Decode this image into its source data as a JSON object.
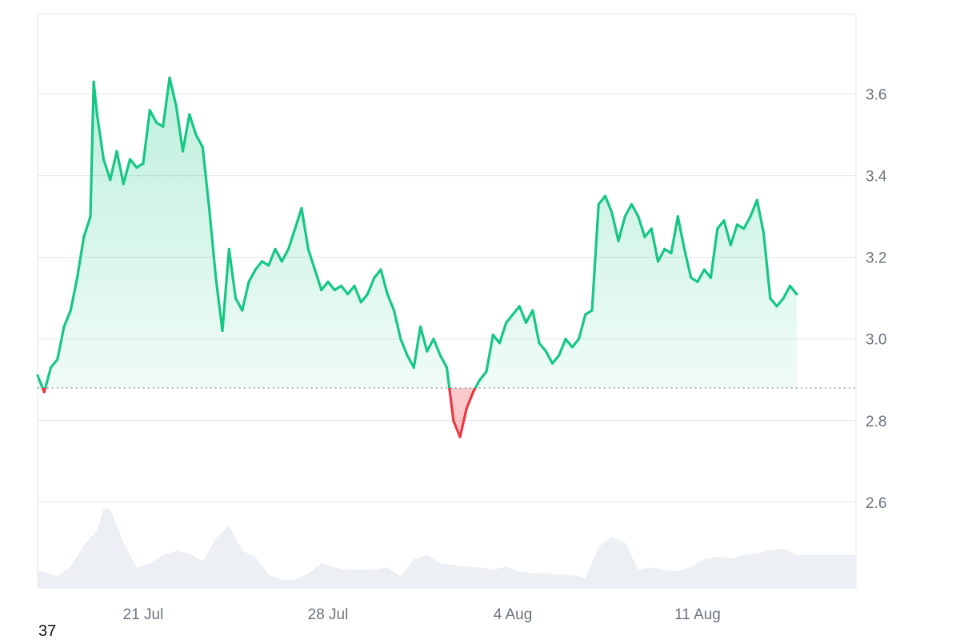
{
  "chart_data": {
    "type": "area",
    "title": "",
    "xlabel": "",
    "ylabel": "",
    "y_axis_position": "right",
    "ylim": [
      2.39,
      3.795
    ],
    "y_ticks": [
      "2.6",
      "2.8",
      "3.0",
      "3.2",
      "3.4",
      "3.6"
    ],
    "x_ticks": [
      "21 Jul",
      "28 Jul",
      "4 Aug",
      "11 Aug"
    ],
    "xlim": [
      "2024-07-17 00:00",
      "2024-08-17 00:00"
    ],
    "baseline": 2.88,
    "grid": true,
    "colors": {
      "above_baseline": "#16c784",
      "below_baseline": "#ea3943",
      "volume": "#eceff3"
    },
    "series": [
      {
        "values": [
          [
            "2024-07-17 00:00",
            2.91
          ],
          [
            "2024-07-17 06:00",
            2.87
          ],
          [
            "2024-07-17 12:00",
            2.93
          ],
          [
            "2024-07-17 18:00",
            2.95
          ],
          [
            "2024-07-18 00:00",
            3.03
          ],
          [
            "2024-07-18 06:00",
            3.07
          ],
          [
            "2024-07-18 12:00",
            3.15
          ],
          [
            "2024-07-18 18:00",
            3.25
          ],
          [
            "2024-07-19 00:00",
            3.3
          ],
          [
            "2024-07-19 03:00",
            3.63
          ],
          [
            "2024-07-19 06:00",
            3.55
          ],
          [
            "2024-07-19 12:00",
            3.44
          ],
          [
            "2024-07-19 18:00",
            3.39
          ],
          [
            "2024-07-20 00:00",
            3.46
          ],
          [
            "2024-07-20 06:00",
            3.38
          ],
          [
            "2024-07-20 12:00",
            3.44
          ],
          [
            "2024-07-20 18:00",
            3.42
          ],
          [
            "2024-07-21 00:00",
            3.43
          ],
          [
            "2024-07-21 06:00",
            3.56
          ],
          [
            "2024-07-21 12:00",
            3.53
          ],
          [
            "2024-07-21 18:00",
            3.52
          ],
          [
            "2024-07-22 00:00",
            3.64
          ],
          [
            "2024-07-22 06:00",
            3.57
          ],
          [
            "2024-07-22 12:00",
            3.46
          ],
          [
            "2024-07-22 18:00",
            3.55
          ],
          [
            "2024-07-23 00:00",
            3.5
          ],
          [
            "2024-07-23 06:00",
            3.47
          ],
          [
            "2024-07-23 12:00",
            3.32
          ],
          [
            "2024-07-23 18:00",
            3.15
          ],
          [
            "2024-07-24 00:00",
            3.02
          ],
          [
            "2024-07-24 06:00",
            3.22
          ],
          [
            "2024-07-24 12:00",
            3.1
          ],
          [
            "2024-07-24 18:00",
            3.07
          ],
          [
            "2024-07-25 00:00",
            3.14
          ],
          [
            "2024-07-25 06:00",
            3.17
          ],
          [
            "2024-07-25 12:00",
            3.19
          ],
          [
            "2024-07-25 18:00",
            3.18
          ],
          [
            "2024-07-26 00:00",
            3.22
          ],
          [
            "2024-07-26 06:00",
            3.19
          ],
          [
            "2024-07-26 12:00",
            3.22
          ],
          [
            "2024-07-26 18:00",
            3.27
          ],
          [
            "2024-07-27 00:00",
            3.32
          ],
          [
            "2024-07-27 06:00",
            3.22
          ],
          [
            "2024-07-27 12:00",
            3.17
          ],
          [
            "2024-07-27 18:00",
            3.12
          ],
          [
            "2024-07-28 00:00",
            3.14
          ],
          [
            "2024-07-28 06:00",
            3.12
          ],
          [
            "2024-07-28 12:00",
            3.13
          ],
          [
            "2024-07-28 18:00",
            3.11
          ],
          [
            "2024-07-29 00:00",
            3.13
          ],
          [
            "2024-07-29 06:00",
            3.09
          ],
          [
            "2024-07-29 12:00",
            3.11
          ],
          [
            "2024-07-29 18:00",
            3.15
          ],
          [
            "2024-07-30 00:00",
            3.17
          ],
          [
            "2024-07-30 06:00",
            3.11
          ],
          [
            "2024-07-30 12:00",
            3.07
          ],
          [
            "2024-07-30 18:00",
            3.0
          ],
          [
            "2024-07-31 00:00",
            2.96
          ],
          [
            "2024-07-31 06:00",
            2.93
          ],
          [
            "2024-07-31 12:00",
            3.03
          ],
          [
            "2024-07-31 18:00",
            2.97
          ],
          [
            "2024-08-01 00:00",
            3.0
          ],
          [
            "2024-08-01 06:00",
            2.96
          ],
          [
            "2024-08-01 12:00",
            2.93
          ],
          [
            "2024-08-01 18:00",
            2.8
          ],
          [
            "2024-08-02 00:00",
            2.76
          ],
          [
            "2024-08-02 06:00",
            2.83
          ],
          [
            "2024-08-02 12:00",
            2.87
          ],
          [
            "2024-08-02 18:00",
            2.9
          ],
          [
            "2024-08-03 00:00",
            2.92
          ],
          [
            "2024-08-03 06:00",
            3.01
          ],
          [
            "2024-08-03 12:00",
            2.99
          ],
          [
            "2024-08-03 18:00",
            3.04
          ],
          [
            "2024-08-04 00:00",
            3.06
          ],
          [
            "2024-08-04 06:00",
            3.08
          ],
          [
            "2024-08-04 12:00",
            3.04
          ],
          [
            "2024-08-04 18:00",
            3.07
          ],
          [
            "2024-08-05 00:00",
            2.99
          ],
          [
            "2024-08-05 06:00",
            2.97
          ],
          [
            "2024-08-05 12:00",
            2.94
          ],
          [
            "2024-08-05 18:00",
            2.96
          ],
          [
            "2024-08-06 00:00",
            3.0
          ],
          [
            "2024-08-06 06:00",
            2.98
          ],
          [
            "2024-08-06 12:00",
            3.0
          ],
          [
            "2024-08-06 18:00",
            3.06
          ],
          [
            "2024-08-07 00:00",
            3.07
          ],
          [
            "2024-08-07 06:00",
            3.33
          ],
          [
            "2024-08-07 12:00",
            3.35
          ],
          [
            "2024-08-07 18:00",
            3.31
          ],
          [
            "2024-08-08 00:00",
            3.24
          ],
          [
            "2024-08-08 06:00",
            3.3
          ],
          [
            "2024-08-08 12:00",
            3.33
          ],
          [
            "2024-08-08 18:00",
            3.3
          ],
          [
            "2024-08-09 00:00",
            3.25
          ],
          [
            "2024-08-09 06:00",
            3.27
          ],
          [
            "2024-08-09 12:00",
            3.19
          ],
          [
            "2024-08-09 18:00",
            3.22
          ],
          [
            "2024-08-10 00:00",
            3.21
          ],
          [
            "2024-08-10 06:00",
            3.3
          ],
          [
            "2024-08-10 12:00",
            3.22
          ],
          [
            "2024-08-10 18:00",
            3.15
          ],
          [
            "2024-08-11 00:00",
            3.14
          ],
          [
            "2024-08-11 06:00",
            3.17
          ],
          [
            "2024-08-11 12:00",
            3.15
          ],
          [
            "2024-08-11 18:00",
            3.27
          ],
          [
            "2024-08-12 00:00",
            3.29
          ],
          [
            "2024-08-12 06:00",
            3.23
          ],
          [
            "2024-08-12 12:00",
            3.28
          ],
          [
            "2024-08-12 18:00",
            3.27
          ],
          [
            "2024-08-13 00:00",
            3.3
          ],
          [
            "2024-08-13 06:00",
            3.34
          ],
          [
            "2024-08-13 12:00",
            3.26
          ],
          [
            "2024-08-13 18:00",
            3.1
          ],
          [
            "2024-08-14 00:00",
            3.08
          ],
          [
            "2024-08-14 06:00",
            3.1
          ],
          [
            "2024-08-14 12:00",
            3.13
          ],
          [
            "2024-08-14 18:00",
            3.11
          ]
        ]
      }
    ],
    "volume": [
      [
        "2024-07-17 00:00",
        0.22
      ],
      [
        "2024-07-17 18:00",
        0.14
      ],
      [
        "2024-07-18 06:00",
        0.26
      ],
      [
        "2024-07-18 18:00",
        0.52
      ],
      [
        "2024-07-19 06:00",
        0.7
      ],
      [
        "2024-07-19 12:00",
        0.96
      ],
      [
        "2024-07-19 18:00",
        0.96
      ],
      [
        "2024-07-20 06:00",
        0.55
      ],
      [
        "2024-07-20 18:00",
        0.25
      ],
      [
        "2024-07-21 06:00",
        0.3
      ],
      [
        "2024-07-21 18:00",
        0.4
      ],
      [
        "2024-07-22 06:00",
        0.45
      ],
      [
        "2024-07-22 18:00",
        0.42
      ],
      [
        "2024-07-23 06:00",
        0.32
      ],
      [
        "2024-07-23 18:00",
        0.6
      ],
      [
        "2024-07-24 06:00",
        0.76
      ],
      [
        "2024-07-24 18:00",
        0.45
      ],
      [
        "2024-07-25 06:00",
        0.38
      ],
      [
        "2024-07-25 18:00",
        0.16
      ],
      [
        "2024-07-26 06:00",
        0.1
      ],
      [
        "2024-07-26 18:00",
        0.1
      ],
      [
        "2024-07-27 06:00",
        0.18
      ],
      [
        "2024-07-27 18:00",
        0.3
      ],
      [
        "2024-07-28 06:00",
        0.25
      ],
      [
        "2024-07-28 18:00",
        0.22
      ],
      [
        "2024-07-29 06:00",
        0.22
      ],
      [
        "2024-07-29 18:00",
        0.22
      ],
      [
        "2024-07-30 06:00",
        0.25
      ],
      [
        "2024-07-30 18:00",
        0.14
      ],
      [
        "2024-07-31 06:00",
        0.35
      ],
      [
        "2024-07-31 18:00",
        0.4
      ],
      [
        "2024-08-01 06:00",
        0.3
      ],
      [
        "2024-08-01 18:00",
        0.28
      ],
      [
        "2024-08-02 06:00",
        0.26
      ],
      [
        "2024-08-02 18:00",
        0.25
      ],
      [
        "2024-08-03 06:00",
        0.22
      ],
      [
        "2024-08-03 18:00",
        0.26
      ],
      [
        "2024-08-04 06:00",
        0.2
      ],
      [
        "2024-08-04 18:00",
        0.18
      ],
      [
        "2024-08-05 06:00",
        0.18
      ],
      [
        "2024-08-05 18:00",
        0.16
      ],
      [
        "2024-08-06 06:00",
        0.16
      ],
      [
        "2024-08-06 18:00",
        0.12
      ],
      [
        "2024-08-07 06:00",
        0.5
      ],
      [
        "2024-08-07 18:00",
        0.62
      ],
      [
        "2024-08-08 06:00",
        0.55
      ],
      [
        "2024-08-08 18:00",
        0.22
      ],
      [
        "2024-08-09 06:00",
        0.25
      ],
      [
        "2024-08-09 18:00",
        0.22
      ],
      [
        "2024-08-10 06:00",
        0.2
      ],
      [
        "2024-08-10 18:00",
        0.26
      ],
      [
        "2024-08-11 06:00",
        0.35
      ],
      [
        "2024-08-11 18:00",
        0.38
      ],
      [
        "2024-08-12 06:00",
        0.36
      ],
      [
        "2024-08-12 18:00",
        0.4
      ],
      [
        "2024-08-13 06:00",
        0.42
      ],
      [
        "2024-08-13 18:00",
        0.46
      ],
      [
        "2024-08-14 06:00",
        0.48
      ],
      [
        "2024-08-14 18:00",
        0.4
      ]
    ]
  },
  "footer_count": "37"
}
